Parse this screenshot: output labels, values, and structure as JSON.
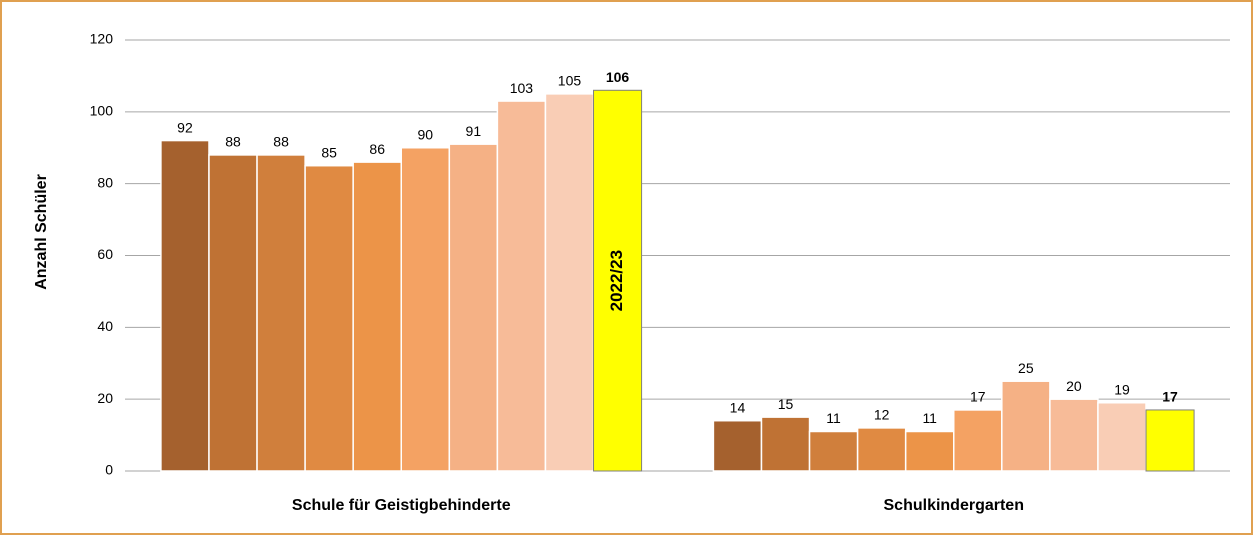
{
  "chart_data": {
    "type": "bar",
    "y_label": "Anzahl Schüler",
    "categories": [
      "Schule für Geistigbehinderte",
      "Schulkindergarten"
    ],
    "series": [
      {
        "color": "#a5612e",
        "values": [
          92,
          14
        ]
      },
      {
        "color": "#bf7234",
        "values": [
          88,
          15
        ]
      },
      {
        "color": "#d07f3c",
        "values": [
          88,
          11
        ]
      },
      {
        "color": "#e08a42",
        "values": [
          85,
          12
        ]
      },
      {
        "color": "#ec9448",
        "values": [
          86,
          11
        ]
      },
      {
        "color": "#f4a263",
        "values": [
          90,
          17
        ]
      },
      {
        "color": "#f5b185",
        "values": [
          91,
          25
        ]
      },
      {
        "color": "#f7bb98",
        "values": [
          103,
          20
        ]
      },
      {
        "color": "#f9cdb5",
        "values": [
          105,
          19
        ]
      },
      {
        "name": "2022/23",
        "color": "#ffff00",
        "values": [
          106,
          17
        ]
      }
    ],
    "ylim": [
      0,
      120
    ],
    "yticks": [
      0,
      20,
      40,
      60,
      80,
      100,
      120
    ],
    "grid": true
  }
}
